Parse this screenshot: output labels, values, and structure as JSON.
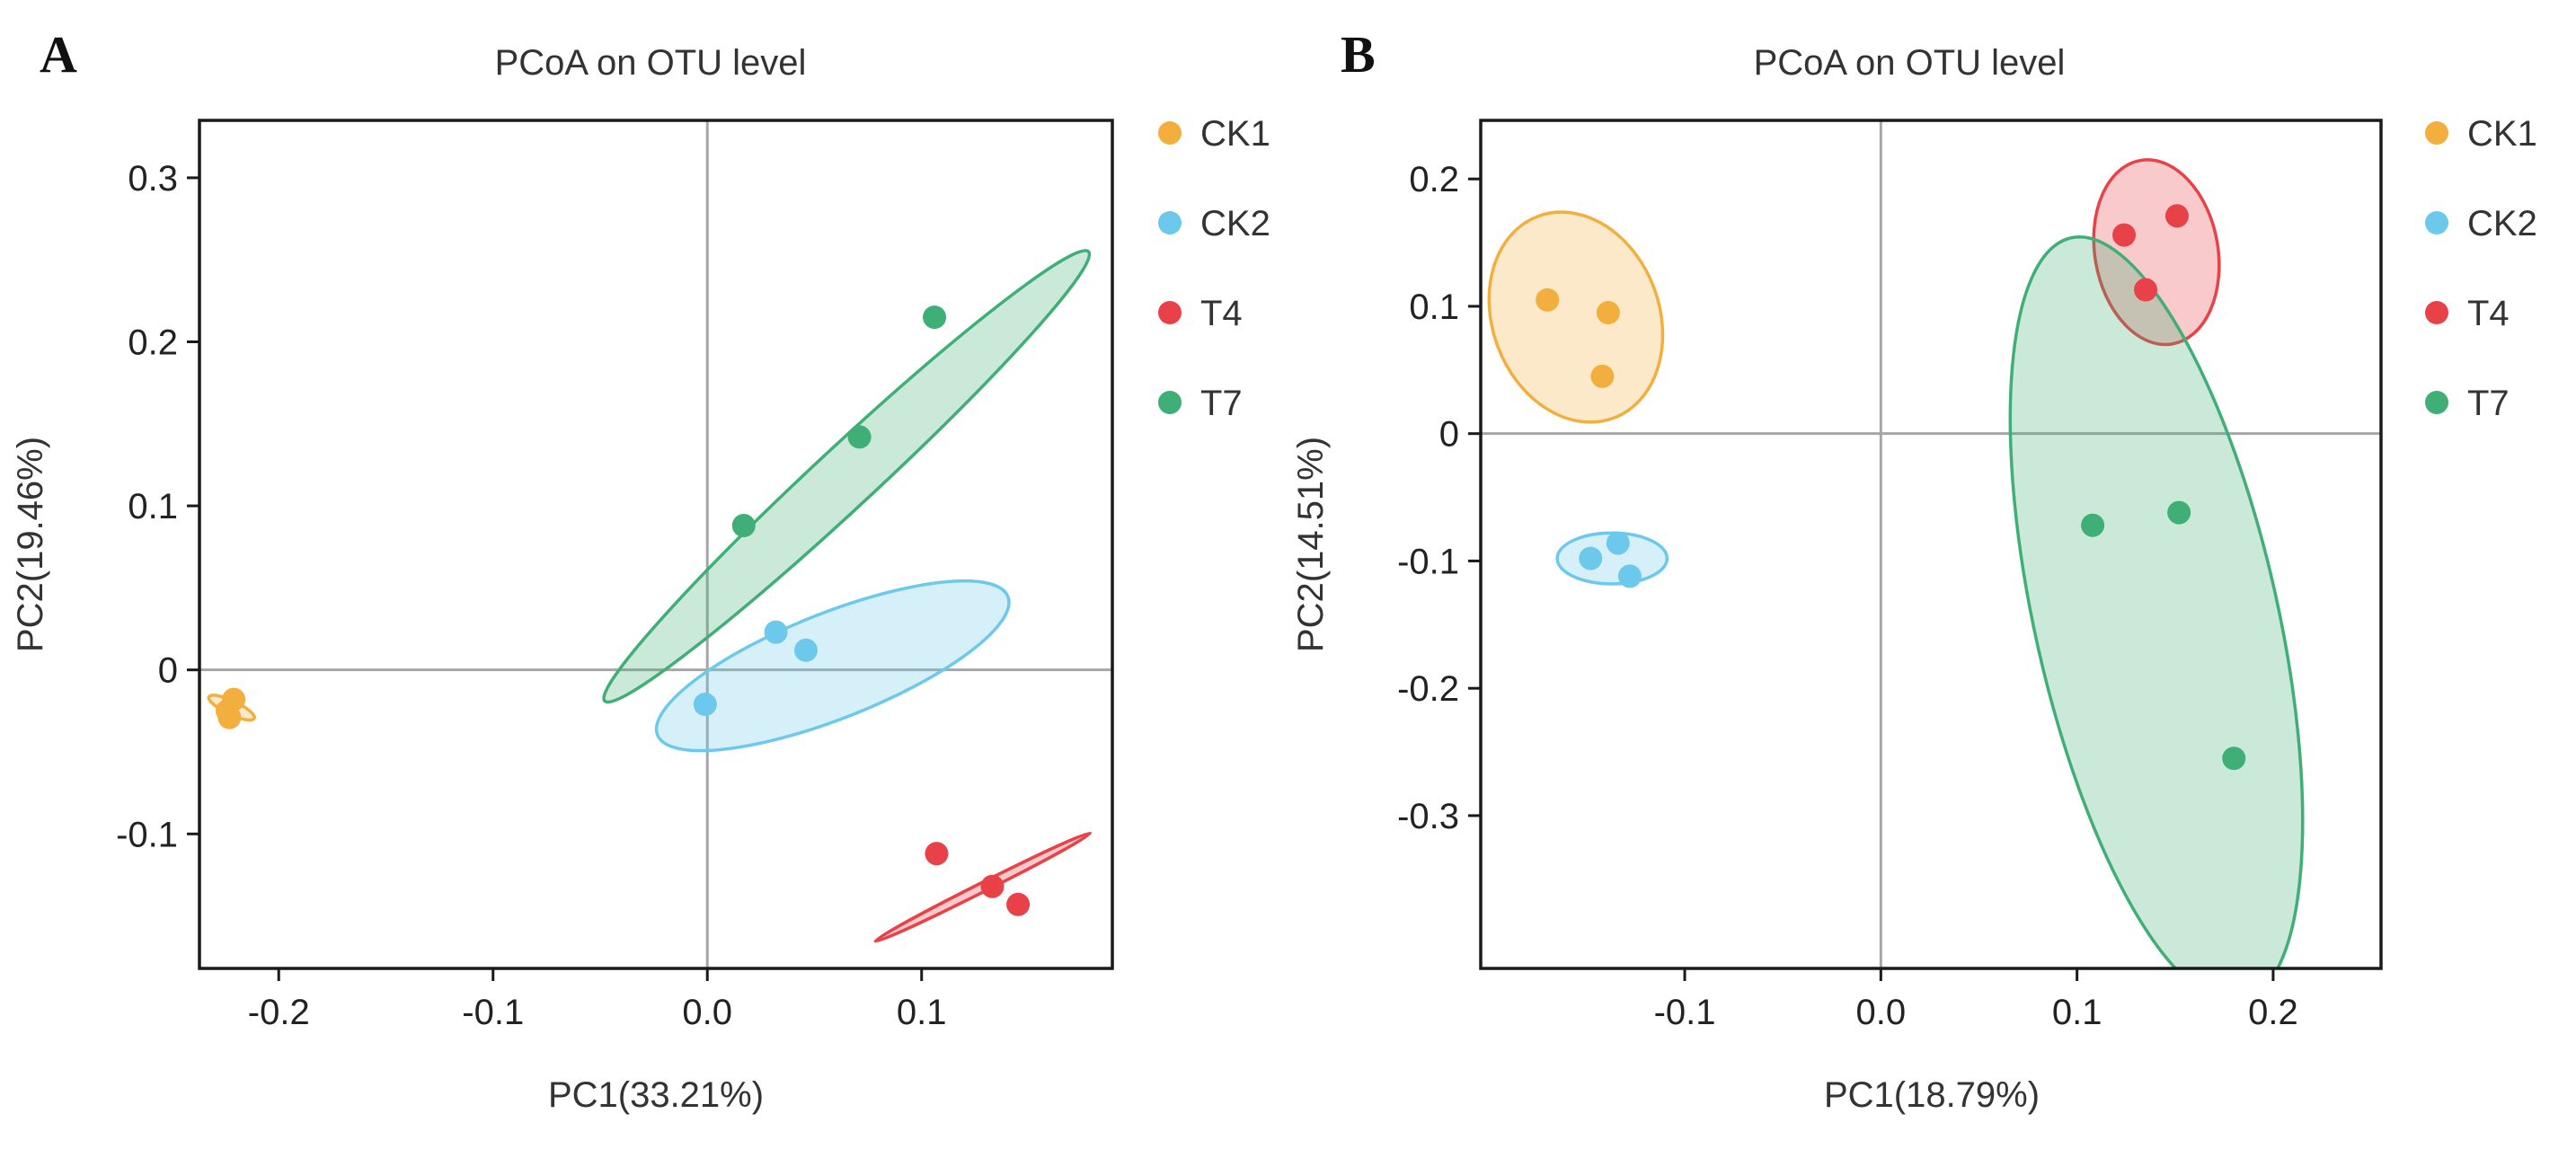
{
  "chart_data": [
    {
      "type": "scatter",
      "panel": "A",
      "title": "PCoA on OTU level",
      "xlabel": "PC1(33.21%)",
      "ylabel": "PC2(19.46%)",
      "xlim": [
        -0.237,
        0.189
      ],
      "ylim": [
        -0.182,
        0.335
      ],
      "xticks": [
        -0.2,
        -0.1,
        0.0,
        0.1
      ],
      "xtick_labels": [
        "-0.2",
        "-0.1",
        "0.0",
        "0.1"
      ],
      "yticks": [
        -0.1,
        0,
        0.1,
        0.2,
        0.3
      ],
      "ytick_labels": [
        "-0.1",
        "0",
        "0.1",
        "0.2",
        "0.3"
      ],
      "zero_lines": true,
      "legend": "right",
      "series": [
        {
          "name": "CK1",
          "color": "#F2AF3E",
          "points": [
            [
              -0.221,
              -0.018
            ],
            [
              -0.224,
              -0.025
            ],
            [
              -0.223,
              -0.029
            ]
          ],
          "ellipse": {
            "center": [
              -0.222,
              -0.023
            ],
            "rx": 0.004,
            "ry": 0.012,
            "angle": 70
          }
        },
        {
          "name": "CK2",
          "color": "#6CC9EB",
          "points": [
            [
              -0.001,
              -0.021
            ],
            [
              0.032,
              0.023
            ],
            [
              0.046,
              0.012
            ]
          ],
          "ellipse": {
            "center": [
              0.0585,
              0.0025
            ],
            "rx": 0.092,
            "ry": 0.03,
            "angle": 27.3
          }
        },
        {
          "name": "T4",
          "color": "#E84248",
          "points": [
            [
              0.107,
              -0.112
            ],
            [
              0.133,
              -0.132
            ],
            [
              0.145,
              -0.143
            ]
          ],
          "ellipse": {
            "center": [
              0.1285,
              -0.1325
            ],
            "rx": 0.06,
            "ry": 0.0025,
            "angle": 33.3
          }
        },
        {
          "name": "T7",
          "color": "#3FAF77",
          "points": [
            [
              0.017,
              0.088
            ],
            [
              0.071,
              0.142
            ],
            [
              0.106,
              0.215
            ]
          ],
          "ellipse": {
            "center": [
              0.065,
              0.118
            ],
            "rx": 0.1775,
            "ry": 0.0155,
            "angle": 50.5
          }
        }
      ]
    },
    {
      "type": "scatter",
      "panel": "B",
      "title": "PCoA on OTU level",
      "xlabel": "PC1(18.79%)",
      "ylabel": "PC2(14.51%)",
      "xlim": [
        -0.204,
        0.255
      ],
      "ylim": [
        -0.42,
        0.246
      ],
      "xticks": [
        -0.1,
        0.0,
        0.1,
        0.2
      ],
      "xtick_labels": [
        "-0.1",
        "0.0",
        "0.1",
        "0.2"
      ],
      "yticks": [
        -0.3,
        -0.2,
        -0.1,
        0,
        0.1,
        0.2
      ],
      "ytick_labels": [
        "-0.3",
        "-0.2",
        "-0.1",
        "0",
        "0.1",
        "0.2"
      ],
      "zero_lines": true,
      "legend": "right",
      "series": [
        {
          "name": "CK1",
          "color": "#F2AF3E",
          "points": [
            [
              -0.17,
              0.105
            ],
            [
              -0.139,
              0.095
            ],
            [
              -0.142,
              0.045
            ]
          ],
          "ellipse": {
            "center": [
              -0.1555,
              0.0915
            ],
            "rx": 0.046,
            "ry": 0.073,
            "angle": 30
          }
        },
        {
          "name": "CK2",
          "color": "#6CC9EB",
          "points": [
            [
              -0.148,
              -0.098
            ],
            [
              -0.134,
              -0.086
            ],
            [
              -0.128,
              -0.112
            ]
          ],
          "ellipse": {
            "center": [
              -0.137,
              -0.098
            ],
            "rx": 0.028,
            "ry": 0.02,
            "angle": 0
          }
        },
        {
          "name": "T4",
          "color": "#E84248",
          "points": [
            [
              0.124,
              0.156
            ],
            [
              0.151,
              0.171
            ],
            [
              0.135,
              0.113
            ]
          ],
          "ellipse": {
            "center": [
              0.1405,
              0.1425
            ],
            "rx": 0.032,
            "ry": 0.07,
            "angle": 15
          }
        },
        {
          "name": "T7",
          "color": "#3FAF77",
          "points": [
            [
              0.108,
              -0.072
            ],
            [
              0.152,
              -0.062
            ],
            [
              0.18,
              -0.255
            ]
          ],
          "ellipse": {
            "center": [
              0.1405,
              -0.146
            ],
            "rx": 0.064,
            "ry": 0.287,
            "angle": 19
          }
        }
      ]
    }
  ]
}
